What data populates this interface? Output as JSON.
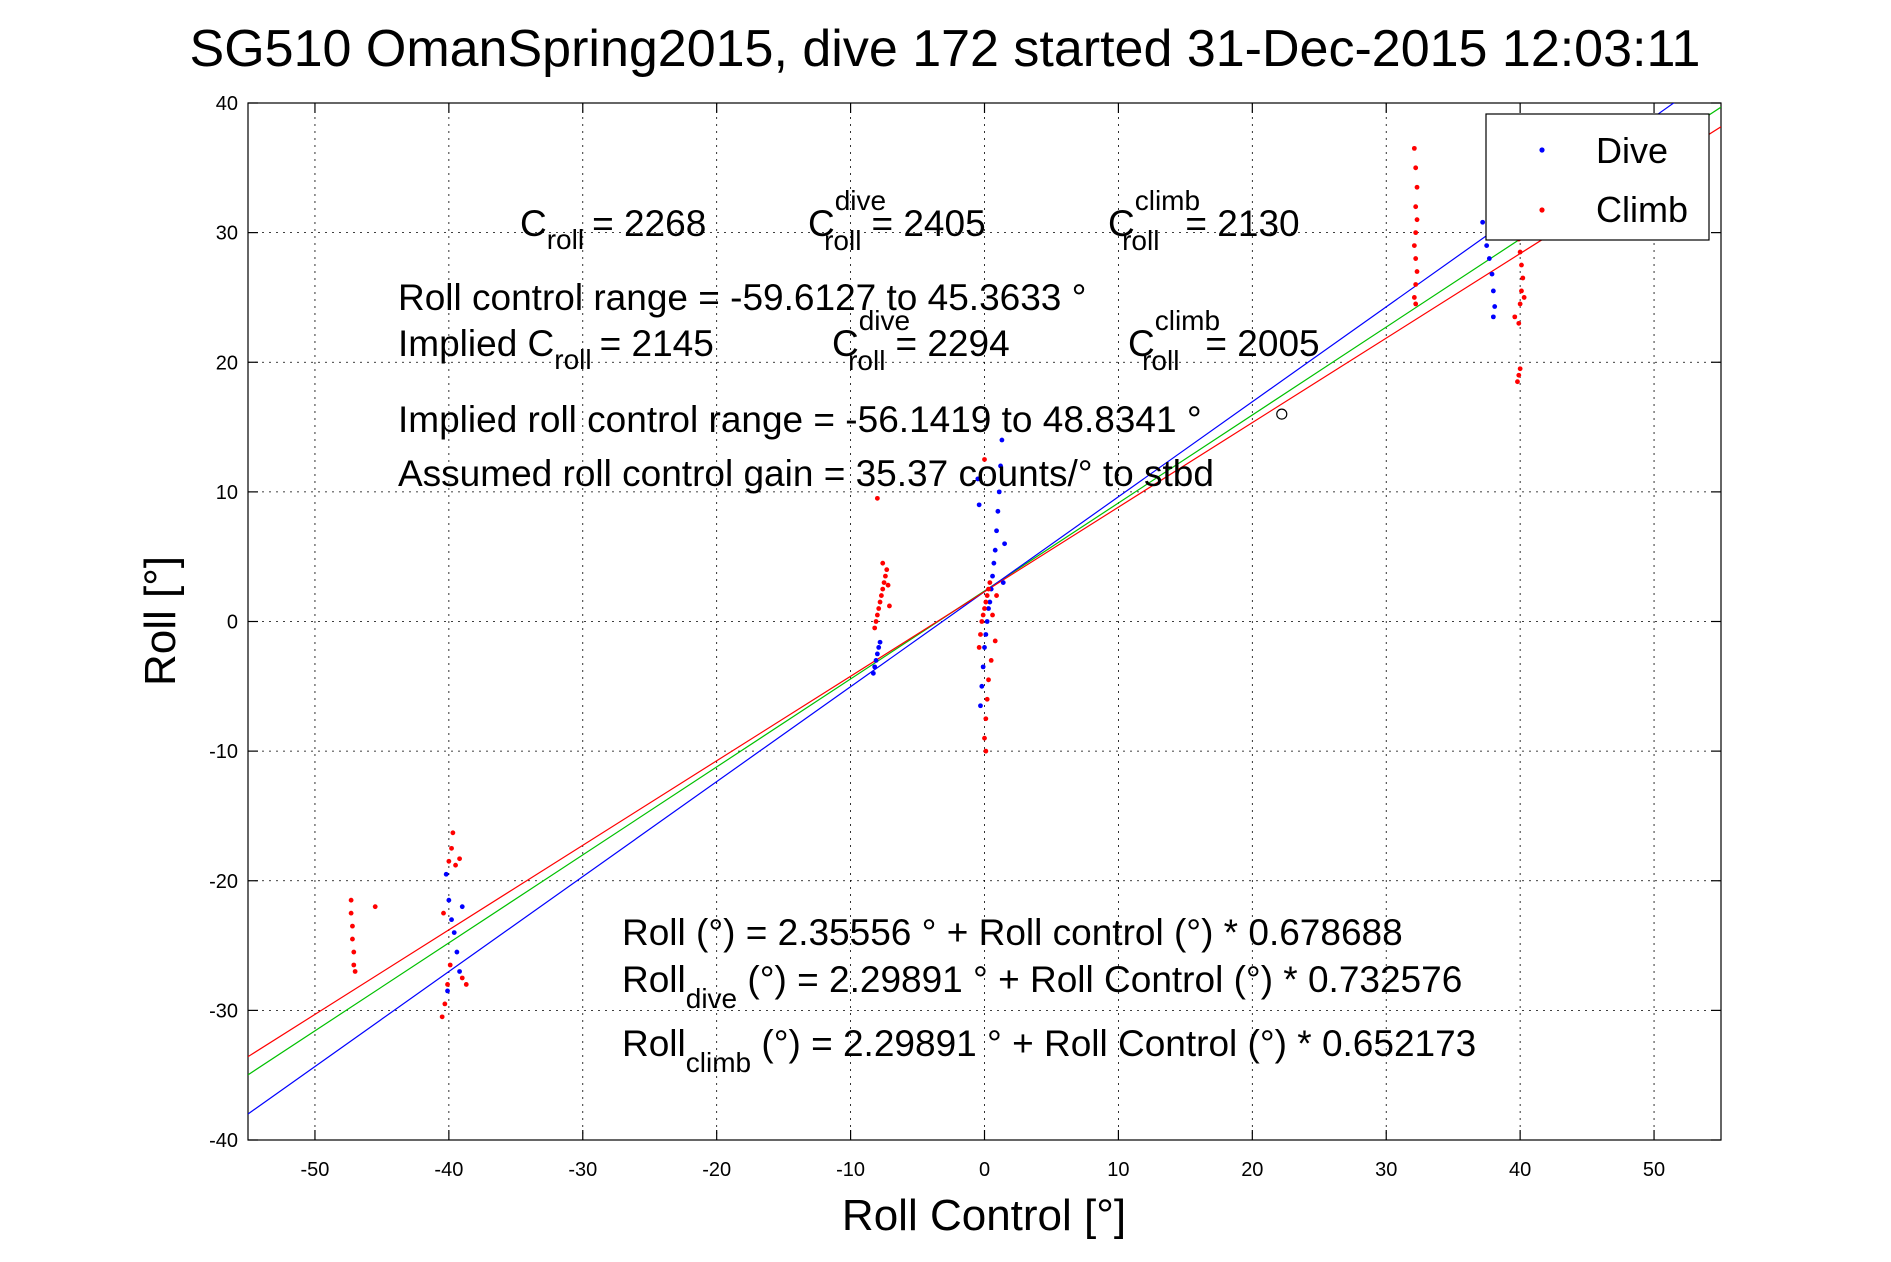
{
  "chart_data": {
    "type": "scatter",
    "title": "SG510 OmanSpring2015, dive 172 started 31-Dec-2015 12:03:11",
    "xlabel": "Roll Control [°]",
    "ylabel": "Roll [°]",
    "xlim": [
      -55,
      55
    ],
    "ylim": [
      -40,
      40
    ],
    "xticks": [
      -50,
      -40,
      -30,
      -20,
      -10,
      0,
      10,
      20,
      30,
      40,
      50
    ],
    "yticks": [
      -40,
      -30,
      -20,
      -10,
      0,
      10,
      20,
      30,
      40
    ],
    "grid": true,
    "legend_position": "top-right",
    "legend": [
      {
        "label": "Dive",
        "color": "#0000ff",
        "marker": "."
      },
      {
        "label": "Climb",
        "color": "#ff0000",
        "marker": "."
      }
    ],
    "series": [
      {
        "name": "Dive",
        "color": "#0000ff",
        "points": [
          [
            -8.3,
            -4.0
          ],
          [
            -8.2,
            -3.5
          ],
          [
            -8.1,
            -3.0
          ],
          [
            -8.0,
            -2.5
          ],
          [
            -7.9,
            -2.0
          ],
          [
            -7.8,
            -1.6
          ],
          [
            -40.2,
            -19.5
          ],
          [
            -40.0,
            -21.5
          ],
          [
            -39.8,
            -23.0
          ],
          [
            -39.6,
            -24.0
          ],
          [
            -39.4,
            -25.5
          ],
          [
            -39.2,
            -27.0
          ],
          [
            -39.0,
            -22.0
          ],
          [
            -40.1,
            -28.5
          ],
          [
            -0.3,
            -6.5
          ],
          [
            -0.2,
            -5.0
          ],
          [
            -0.1,
            -3.5
          ],
          [
            0.0,
            -2.0
          ],
          [
            0.1,
            -1.0
          ],
          [
            0.2,
            0.0
          ],
          [
            0.3,
            1.0
          ],
          [
            0.4,
            1.5
          ],
          [
            0.5,
            2.5
          ],
          [
            0.6,
            3.5
          ],
          [
            0.7,
            4.5
          ],
          [
            0.8,
            5.5
          ],
          [
            0.9,
            7.0
          ],
          [
            1.0,
            8.5
          ],
          [
            1.1,
            10.0
          ],
          [
            1.2,
            12.0
          ],
          [
            1.3,
            14.0
          ],
          [
            1.5,
            6.0
          ],
          [
            1.4,
            3.0
          ],
          [
            -0.4,
            9.0
          ],
          [
            -0.5,
            11.0
          ],
          [
            37.2,
            30.8
          ],
          [
            37.5,
            29.0
          ],
          [
            37.7,
            28.0
          ],
          [
            37.9,
            26.8
          ],
          [
            38.0,
            25.5
          ],
          [
            38.1,
            24.3
          ],
          [
            38.0,
            23.5
          ]
        ]
      },
      {
        "name": "Climb",
        "color": "#ff0000",
        "points": [
          [
            -47.3,
            -21.5
          ],
          [
            -47.3,
            -22.5
          ],
          [
            -47.2,
            -23.5
          ],
          [
            -47.2,
            -24.5
          ],
          [
            -47.1,
            -25.5
          ],
          [
            -47.1,
            -26.5
          ],
          [
            -47.0,
            -27.0
          ],
          [
            -45.5,
            -22.0
          ],
          [
            -40.5,
            -30.5
          ],
          [
            -40.3,
            -29.5
          ],
          [
            -40.1,
            -28.0
          ],
          [
            -39.9,
            -26.5
          ],
          [
            -40.0,
            -18.5
          ],
          [
            -39.8,
            -17.5
          ],
          [
            -39.7,
            -16.3
          ],
          [
            -39.5,
            -18.8
          ],
          [
            -39.2,
            -18.3
          ],
          [
            -38.7,
            -28.0
          ],
          [
            -39.0,
            -27.5
          ],
          [
            -40.4,
            -22.5
          ],
          [
            -8.2,
            -0.5
          ],
          [
            -8.1,
            0.0
          ],
          [
            -8.0,
            0.5
          ],
          [
            -7.9,
            1.0
          ],
          [
            -7.8,
            1.5
          ],
          [
            -7.7,
            2.0
          ],
          [
            -7.6,
            2.5
          ],
          [
            -7.5,
            3.0
          ],
          [
            -7.4,
            3.5
          ],
          [
            -7.3,
            4.0
          ],
          [
            -7.6,
            4.5
          ],
          [
            -7.2,
            2.8
          ],
          [
            -7.1,
            1.2
          ],
          [
            -8.0,
            9.5
          ],
          [
            -0.4,
            -2.0
          ],
          [
            -0.3,
            -1.0
          ],
          [
            -0.2,
            0.0
          ],
          [
            -0.1,
            0.5
          ],
          [
            0.0,
            1.0
          ],
          [
            0.1,
            1.5
          ],
          [
            0.2,
            2.0
          ],
          [
            0.3,
            2.5
          ],
          [
            0.4,
            3.0
          ],
          [
            0.5,
            -3.0
          ],
          [
            0.3,
            -4.5
          ],
          [
            0.2,
            -6.0
          ],
          [
            0.1,
            -7.5
          ],
          [
            0.0,
            -9.0
          ],
          [
            0.1,
            -10.0
          ],
          [
            0.0,
            12.5
          ],
          [
            0.6,
            0.5
          ],
          [
            0.8,
            -1.5
          ],
          [
            0.9,
            2.0
          ],
          [
            32.1,
            25.0
          ],
          [
            32.2,
            26.0
          ],
          [
            32.3,
            27.0
          ],
          [
            32.2,
            28.0
          ],
          [
            32.1,
            29.0
          ],
          [
            32.2,
            30.0
          ],
          [
            32.3,
            31.0
          ],
          [
            32.2,
            32.0
          ],
          [
            32.3,
            33.5
          ],
          [
            32.2,
            35.0
          ],
          [
            32.1,
            36.5
          ],
          [
            32.2,
            24.5
          ],
          [
            39.8,
            18.5
          ],
          [
            39.9,
            19.0
          ],
          [
            40.0,
            19.5
          ],
          [
            39.9,
            23.0
          ],
          [
            40.0,
            24.5
          ],
          [
            40.1,
            25.5
          ],
          [
            40.2,
            26.5
          ],
          [
            40.1,
            27.5
          ],
          [
            40.0,
            28.5
          ],
          [
            39.9,
            29.5
          ],
          [
            40.0,
            30.0
          ],
          [
            39.6,
            23.5
          ],
          [
            40.3,
            25.0
          ]
        ]
      }
    ],
    "fit_lines": [
      {
        "name": "all",
        "color": "#00c000",
        "intercept": 2.35556,
        "slope": 0.678688
      },
      {
        "name": "dive",
        "color": "#0000ff",
        "intercept": 2.29891,
        "slope": 0.732576
      },
      {
        "name": "climb",
        "color": "#ff0000",
        "intercept": 2.29891,
        "slope": 0.652173
      }
    ],
    "outlier_marker": {
      "x": 22.2,
      "y": 16.0
    },
    "annotations": {
      "croll": {
        "main": "C",
        "sub": "roll",
        "value": "= 2268"
      },
      "croll_dive": {
        "main": "C",
        "sup": "dive",
        "sub": "roll",
        "value": "= 2405"
      },
      "croll_climb": {
        "main": "C",
        "sup": "climb",
        "sub": "roll",
        "value": "= 2130"
      },
      "range_line": "Roll control range = -59.6127 to 45.3633 °",
      "implied_prefix": "Implied C",
      "implied_sub": "roll",
      "implied_value": "= 2145",
      "implied_dive": {
        "main": "C",
        "sup": "dive",
        "sub": "roll",
        "value": "= 2294"
      },
      "implied_climb": {
        "main": "C",
        "sup": "climb",
        "sub": "roll",
        "value": "= 2005"
      },
      "implied_range_line": "Implied roll control range = -56.1419 to 48.8341 °",
      "gain_line": "Assumed roll control gain = 35.37 counts/° to stbd",
      "fit_all": "Roll (°) = 2.35556 ° + Roll control (°) * 0.678688",
      "fit_dive_main": "Roll",
      "fit_dive_sub": "dive",
      "fit_dive_rest": " (°) = 2.29891 ° + Roll Control (°) * 0.732576",
      "fit_climb_main": "Roll",
      "fit_climb_sub": "climb",
      "fit_climb_rest": " (°) = 2.29891 ° + Roll Control (°) * 0.652173"
    }
  }
}
